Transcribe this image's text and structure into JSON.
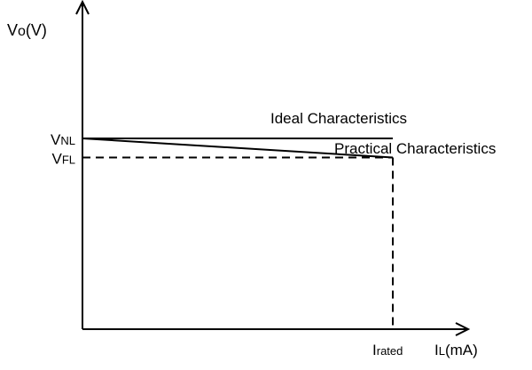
{
  "chart_data": {
    "type": "line",
    "xlabel": {
      "main": "I",
      "sub": "L",
      "unit": "(mA)"
    },
    "ylabel": {
      "main": "V",
      "sub": "o",
      "unit": "(V)"
    },
    "x_ticks": [
      {
        "main": "I",
        "sub": "rated",
        "value": 1
      }
    ],
    "y_ticks": [
      {
        "main": "V",
        "sub": "NL",
        "value": 1.0
      },
      {
        "main": "V",
        "sub": "FL",
        "value": 0.9
      }
    ],
    "xlim": [
      0,
      1.24
    ],
    "ylim": [
      0,
      1.7
    ],
    "series": [
      {
        "name": "Ideal Characteristics",
        "style": "solid",
        "x": [
          0,
          1
        ],
        "y": [
          1.0,
          1.0
        ]
      },
      {
        "name": "Practical Characteristics",
        "style": "solid",
        "x": [
          0,
          1
        ],
        "y": [
          1.0,
          0.9
        ]
      }
    ],
    "guides": [
      {
        "style": "dashed",
        "x": [
          0,
          1
        ],
        "y": [
          0.9,
          0.9
        ]
      },
      {
        "style": "dashed",
        "x": [
          1,
          1
        ],
        "y": [
          0.9,
          0
        ]
      }
    ],
    "colors": {
      "line": "#000000",
      "background": "#ffffff"
    }
  }
}
